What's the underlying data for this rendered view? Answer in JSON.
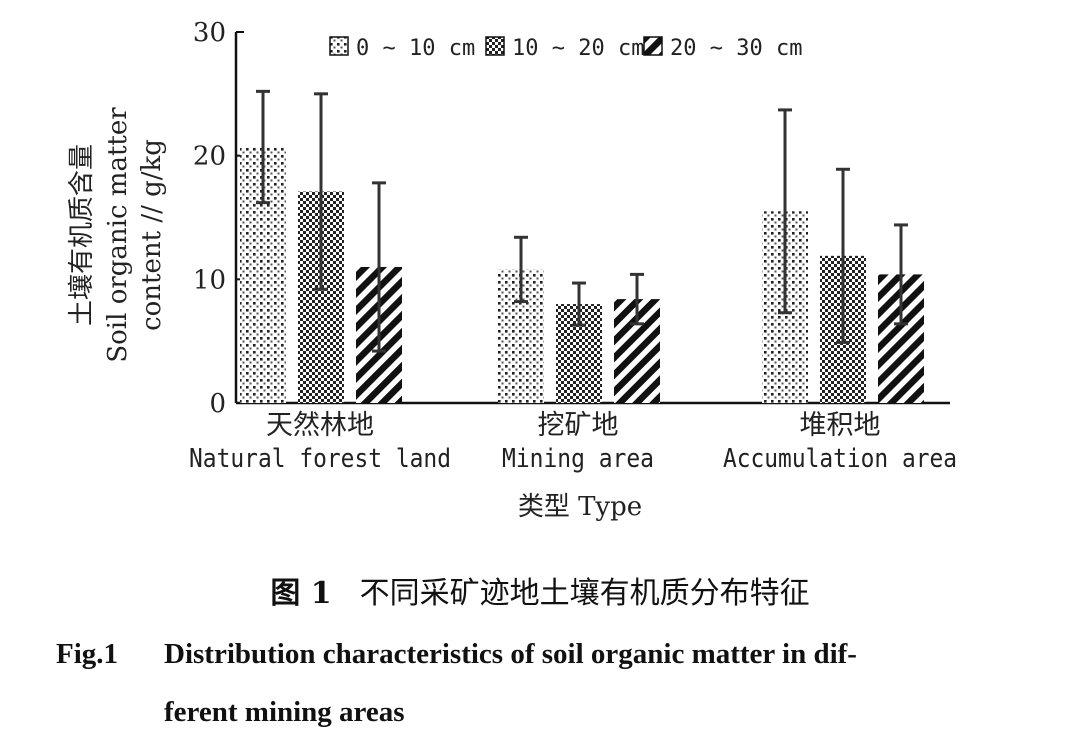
{
  "chart_data": {
    "type": "bar",
    "categories": [
      {
        "zh": "天然林地",
        "en": "Natural forest land"
      },
      {
        "zh": "挖矿地",
        "en": "Mining area"
      },
      {
        "zh": "堆积地",
        "en": "Accumulation area"
      }
    ],
    "series": [
      {
        "name": "0 ~ 10 cm",
        "pattern": "dots",
        "values": [
          20.7,
          10.8,
          15.5
        ],
        "error": [
          4.5,
          2.6,
          8.2
        ]
      },
      {
        "name": "10 ~ 20 cm",
        "pattern": "checker",
        "values": [
          17.1,
          8.0,
          11.9
        ],
        "error": [
          7.9,
          1.7,
          7.0
        ]
      },
      {
        "name": "20 ~ 30 cm",
        "pattern": "diagonal",
        "values": [
          11.0,
          8.4,
          10.4
        ],
        "error": [
          6.8,
          2.0,
          4.0
        ]
      }
    ],
    "ylim": [
      0,
      30
    ],
    "yticks": [
      0,
      10,
      20,
      30
    ],
    "ylabel_lines": [
      "土壤有机质含量",
      "Soil organic matter",
      "content // g/kg"
    ],
    "xlabel": "类型 Type",
    "legend_position": "top",
    "grid": false
  },
  "caption": {
    "zh_label": "图 1",
    "zh_text": "不同采矿迹地土壤有机质分布特征",
    "en_label": "Fig.1",
    "en_line1": "Distribution characteristics of soil organic matter in dif-",
    "en_line2": "ferent mining areas"
  }
}
